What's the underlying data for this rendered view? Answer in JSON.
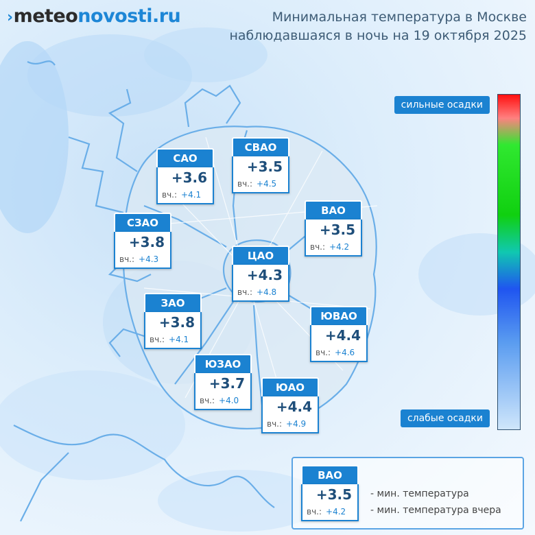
{
  "logo": {
    "mark": "›",
    "part1": "meteo",
    "part2": "novosti.ru"
  },
  "title": {
    "line1": "Минимальная температура в Москве",
    "line2": "наблюдавшаяся в ночь на 19 октября 2025"
  },
  "districts": [
    {
      "name": "САО",
      "temp": "+3.6",
      "prev_label": "вч.:",
      "prev": "+4.1"
    },
    {
      "name": "СВАО",
      "temp": "+3.5",
      "prev_label": "вч.:",
      "prev": "+4.5"
    },
    {
      "name": "ВАО",
      "temp": "+3.5",
      "prev_label": "вч.:",
      "prev": "+4.2"
    },
    {
      "name": "СЗАО",
      "temp": "+3.8",
      "prev_label": "вч.:",
      "prev": "+4.3"
    },
    {
      "name": "ЦАО",
      "temp": "+4.3",
      "prev_label": "вч.:",
      "prev": "+4.8"
    },
    {
      "name": "ЗАО",
      "temp": "+3.8",
      "prev_label": "вч.:",
      "prev": "+4.1"
    },
    {
      "name": "ЮВАО",
      "temp": "+4.4",
      "prev_label": "вч.:",
      "prev": "+4.6"
    },
    {
      "name": "ЮЗАО",
      "temp": "+3.7",
      "prev_label": "вч.:",
      "prev": "+4.0"
    },
    {
      "name": "ЮАО",
      "temp": "+4.4",
      "prev_label": "вч.:",
      "prev": "+4.9"
    }
  ],
  "scale": {
    "top_label": "сильные осадки",
    "bottom_label": "слабые осадки"
  },
  "legend": {
    "sample": {
      "name": "ВАО",
      "temp": "+3.5",
      "prev_label": "вч.:",
      "prev": "+4.2"
    },
    "line1": "- мин. температура",
    "line2": "- мин. температура вчера"
  },
  "colors": {
    "accent": "#1b82d1",
    "map_line": "#6aaee8"
  }
}
